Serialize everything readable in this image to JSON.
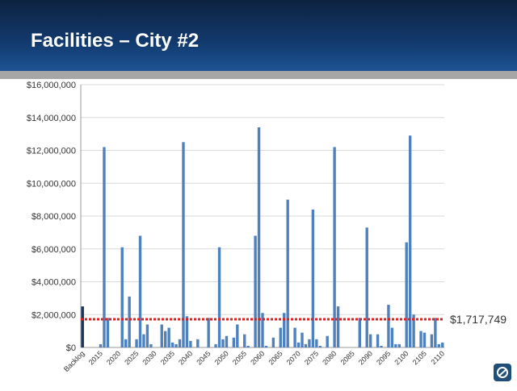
{
  "chart_data": {
    "type": "bar",
    "title": "Facilities – City #2",
    "categories": [
      "Backlog",
      null,
      null,
      null,
      null,
      "2015",
      null,
      null,
      null,
      null,
      "2020",
      null,
      null,
      null,
      null,
      "2025",
      null,
      null,
      null,
      null,
      "2030",
      null,
      null,
      null,
      null,
      "2035",
      null,
      null,
      null,
      null,
      "2040",
      null,
      null,
      null,
      null,
      "2045",
      null,
      null,
      null,
      null,
      "2050",
      null,
      null,
      null,
      null,
      "2055",
      null,
      null,
      null,
      null,
      "2060",
      null,
      null,
      null,
      null,
      "2065",
      null,
      null,
      null,
      null,
      "2070",
      null,
      null,
      null,
      null,
      "2075",
      null,
      null,
      null,
      null,
      "2080",
      null,
      null,
      null,
      null,
      "2085",
      null,
      null,
      null,
      null,
      "2090",
      null,
      null,
      null,
      null,
      "2095",
      null,
      null,
      null,
      null,
      "2100",
      null,
      null,
      null,
      null,
      "2105",
      null,
      null,
      null,
      null,
      "2110"
    ],
    "values": [
      2500000,
      0,
      0,
      0,
      0,
      200000,
      12200000,
      1800000,
      0,
      0,
      0,
      6100000,
      500000,
      3100000,
      0,
      500000,
      6800000,
      800000,
      1400000,
      200000,
      0,
      0,
      1400000,
      1000000,
      1200000,
      300000,
      200000,
      500000,
      12500000,
      1900000,
      400000,
      0,
      500000,
      0,
      0,
      1800000,
      0,
      200000,
      6100000,
      500000,
      700000,
      0,
      600000,
      1400000,
      0,
      800000,
      100000,
      0,
      6800000,
      13400000,
      2100000,
      100000,
      0,
      600000,
      0,
      1200000,
      2100000,
      9000000,
      0,
      1200000,
      300000,
      900000,
      200000,
      500000,
      8400000,
      500000,
      100000,
      0,
      700000,
      0,
      12200000,
      2500000,
      0,
      0,
      0,
      0,
      0,
      1800000,
      0,
      7300000,
      800000,
      0,
      800000,
      100000,
      0,
      2600000,
      1200000,
      200000,
      200000,
      0,
      6400000,
      12900000,
      2000000,
      0,
      1000000,
      900000,
      0,
      800000,
      1800000,
      200000,
      300000
    ],
    "color": "#4f81bd",
    "first_color": "#17375e",
    "average": {
      "value": 1717749,
      "label": "$1,717,749",
      "color": "#e02020"
    },
    "ylim": [
      0,
      16000000
    ],
    "yticks": [
      {
        "value": 0,
        "label": "$0"
      },
      {
        "value": 2000000,
        "label": "$2,000,000"
      },
      {
        "value": 4000000,
        "label": "$4,000,000"
      },
      {
        "value": 6000000,
        "label": "$6,000,000"
      },
      {
        "value": 8000000,
        "label": "$8,000,000"
      },
      {
        "value": 10000000,
        "label": "$10,000,000"
      },
      {
        "value": 12000000,
        "label": "$12,000,000"
      },
      {
        "value": 14000000,
        "label": "$14,000,000"
      },
      {
        "value": 16000000,
        "label": "$16,000,000"
      }
    ],
    "grid": true
  }
}
